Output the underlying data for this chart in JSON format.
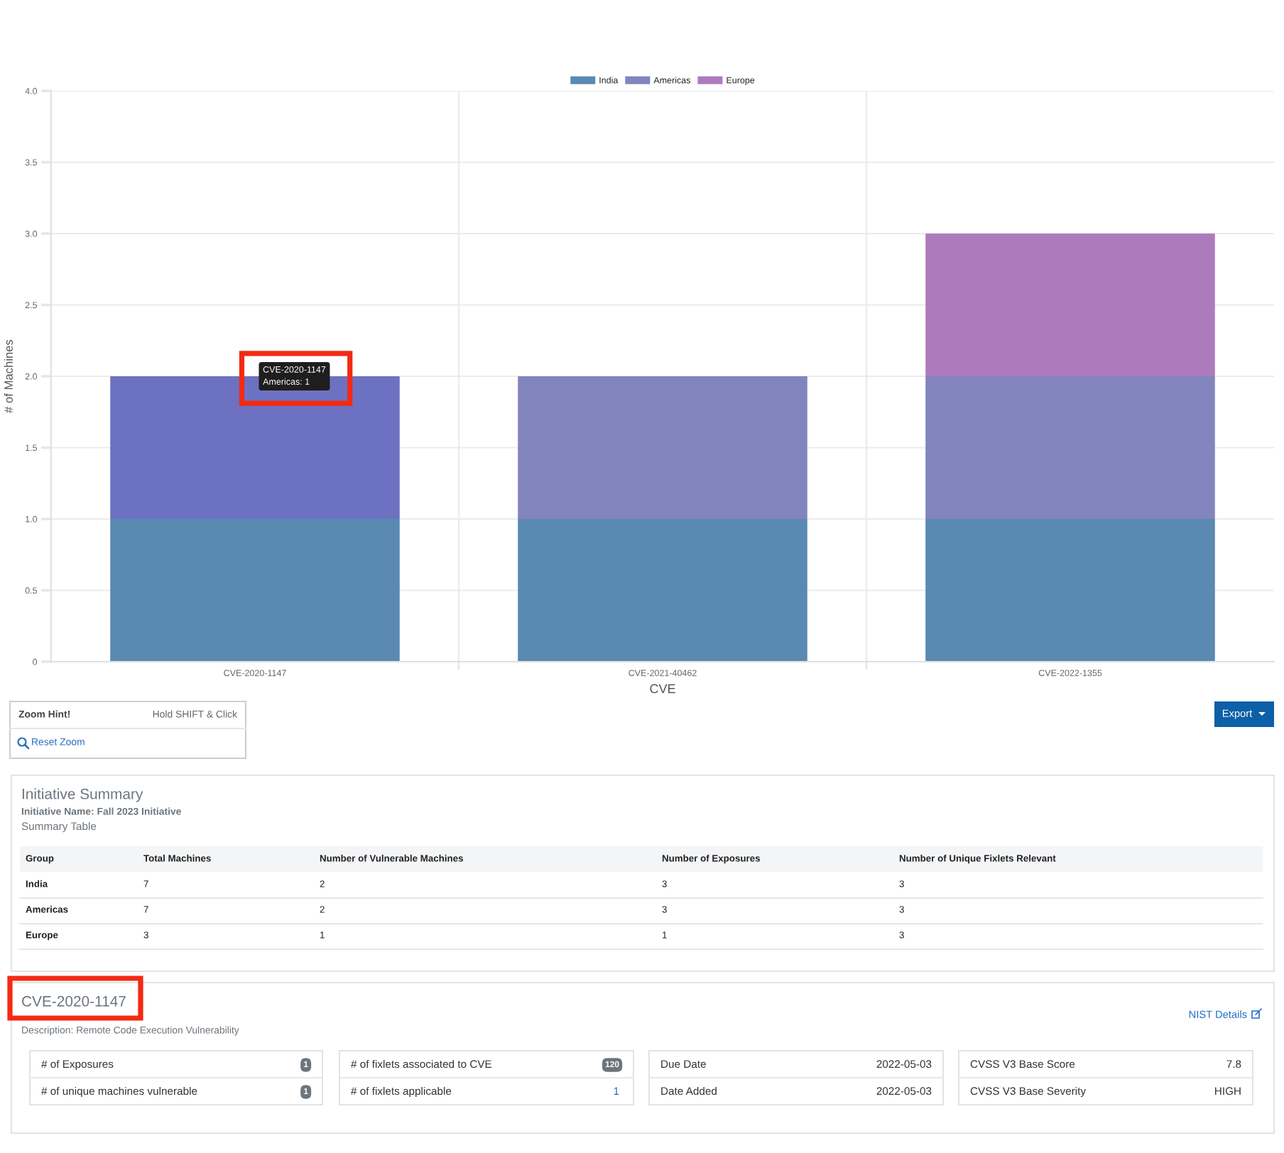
{
  "chart_data": [
    {
      "type": "bar",
      "categories": [
        "CVE-2020-1147",
        "CVE-2021-40462",
        "CVE-2022-1355"
      ],
      "series": [
        {
          "name": "India",
          "color": "#5a89b1",
          "values": [
            1,
            1,
            1
          ]
        },
        {
          "name": "Americas",
          "color": "#8284bd",
          "colors": [
            "#6d71c2",
            "#8284bd",
            "#8284bd"
          ],
          "values": [
            1,
            1,
            1
          ]
        },
        {
          "name": "Europe",
          "color": "#ad7bbd",
          "values": [
            null,
            null,
            1
          ]
        }
      ],
      "stacked": true,
      "xlabel": "CVE",
      "ylabel": "# of Machines",
      "ylim": [
        0,
        4
      ],
      "yticks": [
        0,
        0.5,
        {
          "value": 1,
          "label": "1.0"
        },
        1.5,
        {
          "value": 2,
          "label": "2.0"
        },
        2.5,
        {
          "value": 3,
          "label": "3.0"
        },
        3.5,
        {
          "value": 4,
          "label": "4.0"
        }
      ],
      "grid": true,
      "legend": "top",
      "annotations": [
        {
          "text": "CVE-2020-1147\nAmericas: 1",
          "x": "CVE-2020-1147",
          "y": 2
        },
        "Zoom Hint!",
        "Hold SHIFT & Click",
        "Reset Zoom",
        "Export"
      ]
    },
    {
      "type": "other",
      "title": "Initiative Summary",
      "subtitle": "Initiative Name: Fall 2023 Initiative",
      "annotations": [
        "Summary Table"
      ],
      "ylabel": "Group",
      "categories": [
        "Total Machines",
        "Number of Vulnerable Machines",
        "Number of Exposures",
        "Number of Unique Fixlets Relevant"
      ],
      "y_categories": [
        "India",
        "Americas",
        "Europe"
      ],
      "cell_labels": [
        [
          "7",
          "2",
          "3",
          "3"
        ],
        [
          "7",
          "2",
          "3",
          "3"
        ],
        [
          "3",
          "1",
          "1",
          "3"
        ]
      ]
    },
    {
      "type": "other",
      "title": "CVE-2020-1147",
      "subtitle": "Description: Remote Code Execution Vulnerability",
      "annotations": [
        "NIST Details"
      ],
      "categories": [
        "# of Exposures",
        "# of unique machines vulnerable",
        "# of fixlets associated to CVE",
        "# of fixlets applicable",
        "Due Date",
        "Date Added",
        "CVSS V3 Base Score",
        "CVSS V3 Base Severity"
      ],
      "value_labels": [
        "1",
        "1",
        "120",
        "1",
        "2022-05-03",
        "2022-05-03",
        "7.8",
        "HIGH"
      ]
    }
  ]
}
